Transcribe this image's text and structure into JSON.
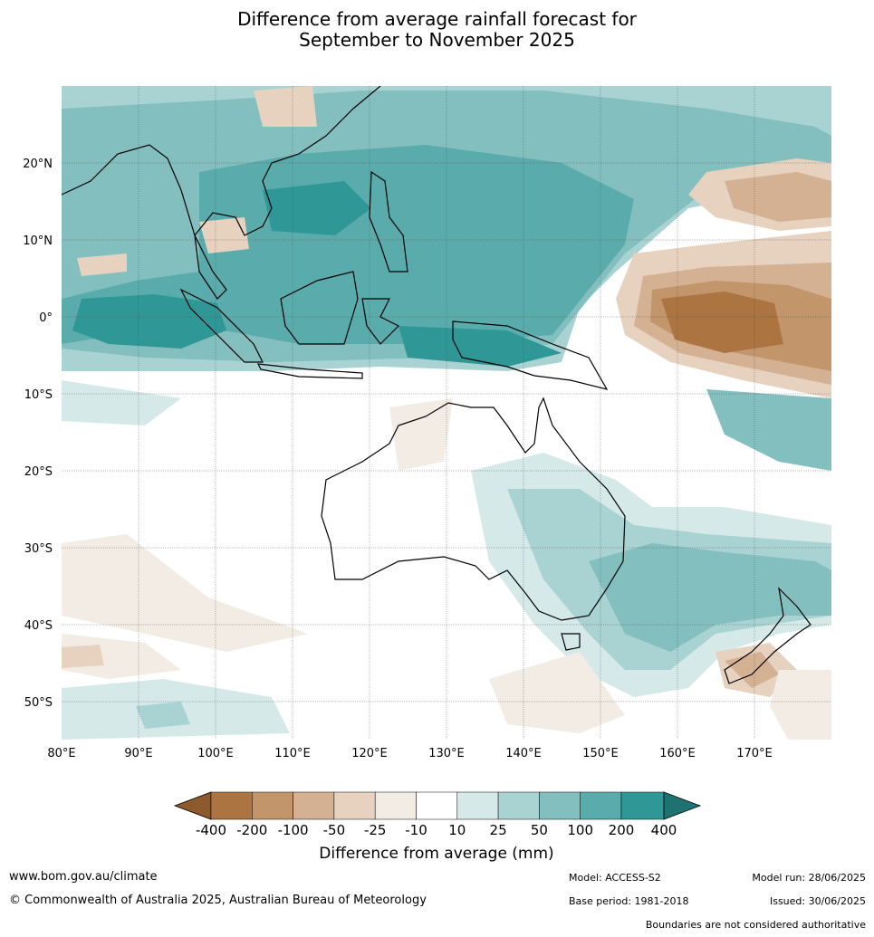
{
  "title_line1": "Difference from average rainfall forecast for",
  "title_line2": "September to November 2025",
  "map": {
    "lon_range": [
      80,
      180
    ],
    "lat_range": [
      -55,
      30
    ],
    "lon_ticks": [
      "80°E",
      "90°E",
      "100°E",
      "110°E",
      "120°E",
      "130°E",
      "140°E",
      "150°E",
      "160°E",
      "170°E"
    ],
    "lat_ticks": [
      "20°N",
      "10°N",
      "0°",
      "10°S",
      "20°S",
      "30°S",
      "40°S",
      "50°S"
    ]
  },
  "colorbar": {
    "labels": [
      "-400",
      "-200",
      "-100",
      "-50",
      "-25",
      "-10",
      "10",
      "25",
      "50",
      "100",
      "200",
      "400"
    ],
    "colors": [
      "#8c5a2b",
      "#ab7440",
      "#c2956a",
      "#d4b192",
      "#e6d2bf",
      "#f3ece4",
      "#ffffff",
      "#d5e9e8",
      "#a9d3d2",
      "#82bfbe",
      "#5aacac",
      "#2f9896",
      "#1e7270"
    ],
    "title": "Difference from average (mm)"
  },
  "footer": {
    "url": "www.bom.gov.au/climate",
    "copyright": "© Commonwealth of Australia 2025, Australian Bureau of Meteorology",
    "model": "Model: ACCESS-S2",
    "model_run": "Model run: 28/06/2025",
    "base_period": "Base period: 1981-2018",
    "issued": "Issued: 30/06/2025",
    "disclaimer": "Boundaries are not considered authoritative"
  }
}
